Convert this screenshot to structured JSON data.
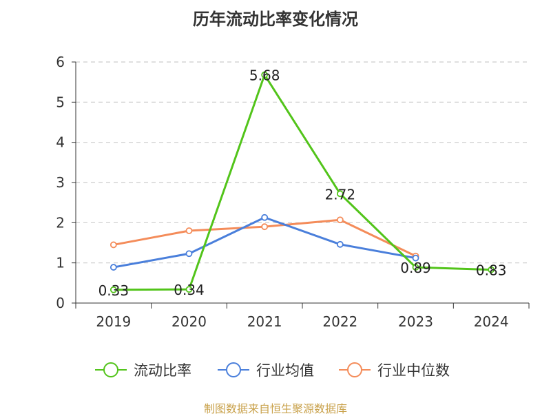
{
  "chart_data": {
    "type": "line",
    "title": "历年流动比率变化情况",
    "categories": [
      "2019",
      "2020",
      "2021",
      "2022",
      "2023",
      "2024"
    ],
    "ylim": [
      0,
      6
    ],
    "yticks": [
      0,
      1,
      2,
      3,
      4,
      5,
      6
    ],
    "grid": true,
    "legend_position": "bottom",
    "series": [
      {
        "name": "流动比率",
        "color": "#52c41a",
        "values": [
          0.33,
          0.34,
          5.68,
          2.72,
          0.89,
          0.83
        ],
        "show_labels": true
      },
      {
        "name": "行业均值",
        "color": "#4a7fdb",
        "values": [
          0.89,
          1.23,
          2.13,
          1.46,
          1.12,
          null
        ],
        "show_labels": false
      },
      {
        "name": "行业中位数",
        "color": "#f48c5a",
        "values": [
          1.45,
          1.8,
          1.9,
          2.07,
          1.17,
          null
        ],
        "show_labels": false
      }
    ]
  },
  "footer": "制图数据来自恒生聚源数据库"
}
